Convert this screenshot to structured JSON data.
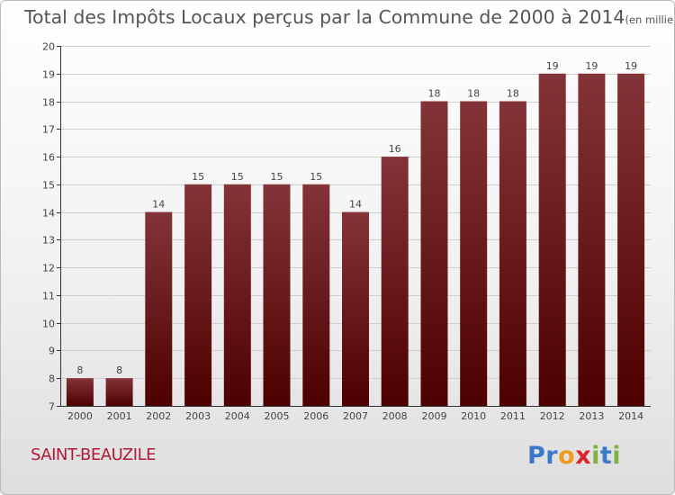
{
  "title": "Total des Impôts Locaux perçus par la Commune de 2000 à 2014",
  "title_unit": "(en milliers d'€)",
  "commune": "SAINT-BEAUZILE",
  "logo": {
    "text": "Proxiti",
    "letters": [
      "P",
      "r",
      "o",
      "x",
      "i",
      "t",
      "i"
    ],
    "colors": [
      "#3a78c8",
      "#3a78c8",
      "#f29a1f",
      "#d9242c",
      "#7cb342",
      "#3a78c8",
      "#7cb342"
    ]
  },
  "colors": {
    "bar_top": "#843438",
    "bar_bottom": "#4d0000",
    "axis": "#333333",
    "grid": "#cfcfcf",
    "label": "#444444",
    "commune": "#b01a35"
  },
  "chart_data": {
    "type": "bar",
    "title": "Total des Impôts Locaux perçus par la Commune de 2000 à 2014",
    "categories": [
      "2000",
      "2001",
      "2002",
      "2003",
      "2004",
      "2005",
      "2006",
      "2007",
      "2008",
      "2009",
      "2010",
      "2011",
      "2012",
      "2013",
      "2014"
    ],
    "values": [
      8,
      8,
      14,
      15,
      15,
      15,
      15,
      14,
      16,
      18,
      18,
      18,
      19,
      19,
      19
    ],
    "value_labels": [
      "8",
      "8",
      "14",
      "15",
      "15",
      "15",
      "15",
      "14",
      "16",
      "18",
      "18",
      "18",
      "19",
      "19",
      "19"
    ],
    "ylim": [
      7,
      20
    ],
    "yticks": [
      7,
      8,
      9,
      10,
      11,
      12,
      13,
      14,
      15,
      16,
      17,
      18,
      19,
      20
    ],
    "xlabel": "",
    "ylabel": "",
    "grid": true
  }
}
